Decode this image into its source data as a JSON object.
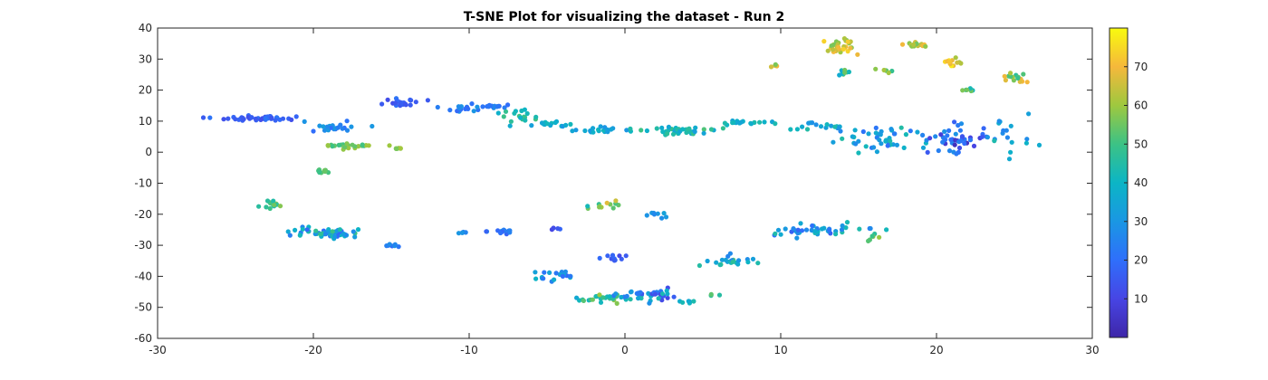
{
  "chart_data": {
    "type": "scatter",
    "title": "T-SNE Plot for visualizing the dataset - Run 2",
    "xlabel": "",
    "ylabel": "",
    "xlim": [
      -30,
      30
    ],
    "ylim": [
      -60,
      40
    ],
    "xticks": [
      -30,
      -20,
      -10,
      0,
      10,
      20,
      30
    ],
    "yticks": [
      -60,
      -50,
      -40,
      -30,
      -20,
      -10,
      0,
      10,
      20,
      30,
      40
    ],
    "colorbar": {
      "min": 0,
      "max": 80,
      "ticks": [
        10,
        20,
        30,
        40,
        50,
        60,
        70
      ]
    },
    "grid": false,
    "clusters": [
      {
        "center": [
          -23.5,
          11
        ],
        "spread": [
          2.0,
          0.7
        ],
        "count": 45,
        "color_range": [
          12,
          22
        ]
      },
      {
        "center": [
          -19,
          8
        ],
        "spread": [
          1.8,
          1.5
        ],
        "count": 22,
        "color_range": [
          18,
          32
        ]
      },
      {
        "center": [
          -17.8,
          2
        ],
        "spread": [
          1.4,
          0.5
        ],
        "count": 25,
        "color_range": [
          48,
          62
        ]
      },
      {
        "center": [
          -19.5,
          -6
        ],
        "spread": [
          0.5,
          0.6
        ],
        "count": 10,
        "color_range": [
          48,
          56
        ]
      },
      {
        "center": [
          -14.5,
          1.2
        ],
        "spread": [
          0.5,
          0.2
        ],
        "count": 6,
        "color_range": [
          55,
          65
        ]
      },
      {
        "center": [
          -14.5,
          16
        ],
        "spread": [
          1.2,
          1.2
        ],
        "count": 20,
        "color_range": [
          12,
          22
        ]
      },
      {
        "center": [
          -10.5,
          14
        ],
        "spread": [
          1.4,
          0.8
        ],
        "count": 18,
        "color_range": [
          18,
          30
        ]
      },
      {
        "center": [
          -8.5,
          15
        ],
        "spread": [
          1.2,
          0.6
        ],
        "count": 12,
        "color_range": [
          18,
          32
        ]
      },
      {
        "center": [
          -6.5,
          12
        ],
        "spread": [
          1.0,
          2.5
        ],
        "count": 18,
        "color_range": [
          35,
          52
        ]
      },
      {
        "center": [
          -4.5,
          9
        ],
        "spread": [
          1.2,
          0.7
        ],
        "count": 14,
        "color_range": [
          30,
          42
        ]
      },
      {
        "center": [
          -2,
          7
        ],
        "spread": [
          1.6,
          0.7
        ],
        "count": 22,
        "color_range": [
          28,
          42
        ]
      },
      {
        "center": [
          3.5,
          7
        ],
        "spread": [
          1.8,
          1.0
        ],
        "count": 40,
        "color_range": [
          32,
          52
        ]
      },
      {
        "center": [
          7.5,
          9.5
        ],
        "spread": [
          1.4,
          0.6
        ],
        "count": 18,
        "color_range": [
          32,
          45
        ]
      },
      {
        "center": [
          12.5,
          8
        ],
        "spread": [
          1.6,
          1.0
        ],
        "count": 16,
        "color_range": [
          28,
          45
        ]
      },
      {
        "center": [
          16.5,
          4
        ],
        "spread": [
          2.2,
          4.0
        ],
        "count": 45,
        "color_range": [
          20,
          45
        ]
      },
      {
        "center": [
          21,
          4
        ],
        "spread": [
          1.8,
          4.0
        ],
        "count": 45,
        "color_range": [
          3,
          30
        ]
      },
      {
        "center": [
          24.5,
          5
        ],
        "spread": [
          1.2,
          5.0
        ],
        "count": 18,
        "color_range": [
          25,
          45
        ]
      },
      {
        "center": [
          13.8,
          34
        ],
        "spread": [
          0.8,
          1.8
        ],
        "count": 35,
        "color_range": [
          55,
          75
        ]
      },
      {
        "center": [
          14,
          26
        ],
        "spread": [
          0.4,
          1.0
        ],
        "count": 10,
        "color_range": [
          30,
          60
        ]
      },
      {
        "center": [
          18.5,
          34.5
        ],
        "spread": [
          1.0,
          0.6
        ],
        "count": 15,
        "color_range": [
          55,
          75
        ]
      },
      {
        "center": [
          21,
          29
        ],
        "spread": [
          0.8,
          1.0
        ],
        "count": 12,
        "color_range": [
          60,
          78
        ]
      },
      {
        "center": [
          24.8,
          24
        ],
        "spread": [
          0.8,
          2.0
        ],
        "count": 15,
        "color_range": [
          45,
          75
        ]
      },
      {
        "center": [
          9.5,
          28
        ],
        "spread": [
          0.5,
          0.4
        ],
        "count": 5,
        "color_range": [
          55,
          70
        ]
      },
      {
        "center": [
          16.8,
          26.5
        ],
        "spread": [
          0.6,
          0.6
        ],
        "count": 6,
        "color_range": [
          45,
          65
        ]
      },
      {
        "center": [
          22,
          20
        ],
        "spread": [
          0.6,
          0.4
        ],
        "count": 6,
        "color_range": [
          40,
          60
        ]
      },
      {
        "center": [
          -22.7,
          -17
        ],
        "spread": [
          0.5,
          1.0
        ],
        "count": 14,
        "color_range": [
          38,
          62
        ]
      },
      {
        "center": [
          -19,
          -26
        ],
        "spread": [
          2.2,
          1.2
        ],
        "count": 60,
        "color_range": [
          18,
          50
        ]
      },
      {
        "center": [
          -15,
          -30
        ],
        "spread": [
          0.6,
          0.4
        ],
        "count": 7,
        "color_range": [
          18,
          32
        ]
      },
      {
        "center": [
          -10.5,
          -26
        ],
        "spread": [
          0.4,
          0.3
        ],
        "count": 5,
        "color_range": [
          20,
          32
        ]
      },
      {
        "center": [
          -8,
          -25.5
        ],
        "spread": [
          0.8,
          0.6
        ],
        "count": 12,
        "color_range": [
          15,
          30
        ]
      },
      {
        "center": [
          -4.5,
          -24.5
        ],
        "spread": [
          0.4,
          0.3
        ],
        "count": 4,
        "color_range": [
          10,
          20
        ]
      },
      {
        "center": [
          -1,
          -17
        ],
        "spread": [
          1.4,
          1.0
        ],
        "count": 12,
        "color_range": [
          40,
          68
        ]
      },
      {
        "center": [
          2,
          -20
        ],
        "spread": [
          0.8,
          0.8
        ],
        "count": 8,
        "color_range": [
          20,
          35
        ]
      },
      {
        "center": [
          -4.5,
          -40
        ],
        "spread": [
          1.0,
          1.5
        ],
        "count": 20,
        "color_range": [
          15,
          40
        ]
      },
      {
        "center": [
          -1.5,
          -47
        ],
        "spread": [
          1.4,
          1.0
        ],
        "count": 25,
        "color_range": [
          35,
          60
        ]
      },
      {
        "center": [
          -1,
          -34
        ],
        "spread": [
          0.9,
          1.6
        ],
        "count": 10,
        "color_range": [
          10,
          20
        ]
      },
      {
        "center": [
          1.5,
          -46
        ],
        "spread": [
          1.5,
          2.0
        ],
        "count": 40,
        "color_range": [
          10,
          45
        ]
      },
      {
        "center": [
          4,
          -48
        ],
        "spread": [
          0.5,
          0.5
        ],
        "count": 6,
        "color_range": [
          30,
          45
        ]
      },
      {
        "center": [
          5.7,
          -46
        ],
        "spread": [
          0.2,
          0.2
        ],
        "count": 3,
        "color_range": [
          45,
          55
        ]
      },
      {
        "center": [
          6.5,
          -35
        ],
        "spread": [
          1.5,
          1.5
        ],
        "count": 22,
        "color_range": [
          25,
          55
        ]
      },
      {
        "center": [
          12.5,
          -25
        ],
        "spread": [
          2.5,
          1.5
        ],
        "count": 45,
        "color_range": [
          15,
          45
        ]
      },
      {
        "center": [
          16,
          -27.5
        ],
        "spread": [
          0.5,
          1.0
        ],
        "count": 6,
        "color_range": [
          45,
          65
        ]
      }
    ]
  }
}
